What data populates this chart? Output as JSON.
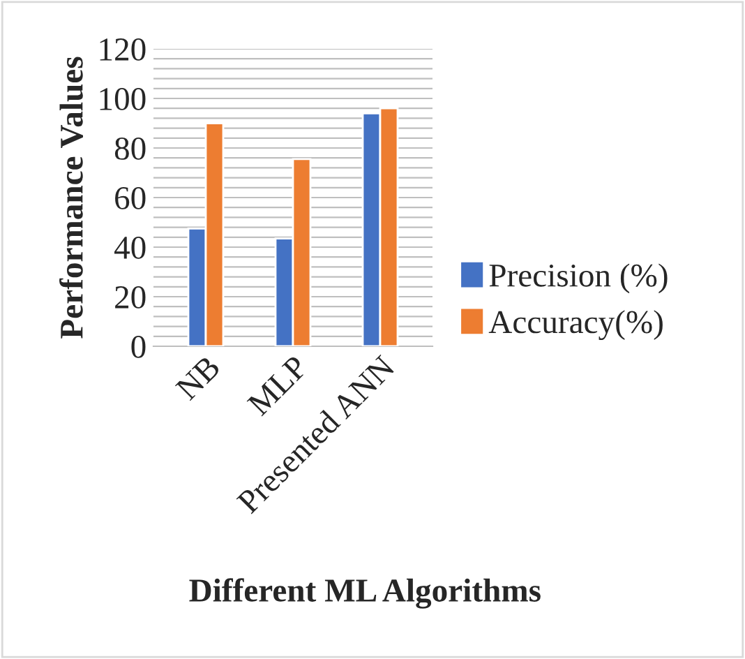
{
  "chart_data": {
    "type": "bar",
    "xlabel": "Different ML Algorithms",
    "ylabel": "Performance Values",
    "categories": [
      "NB",
      "MLP",
      "Presented ANN"
    ],
    "series": [
      {
        "name": "Precision (%)",
        "color": "#4472c4",
        "values": [
          47.5,
          43.5,
          94
        ]
      },
      {
        "name": "Accuracy(%)",
        "color": "#ed7d31",
        "values": [
          90,
          75.5,
          96
        ]
      }
    ],
    "ylim": [
      0,
      120
    ],
    "yticks": [
      0,
      {
        "value": 4,
        "label": null
      },
      {
        "value": 8,
        "label": null
      },
      {
        "value": 12,
        "label": null
      },
      {
        "value": 16,
        "label": null
      },
      20,
      {
        "value": 24,
        "label": null
      },
      {
        "value": 28,
        "label": null
      },
      {
        "value": 32,
        "label": null
      },
      {
        "value": 36,
        "label": null
      },
      40,
      {
        "value": 44,
        "label": null
      },
      {
        "value": 48,
        "label": null
      },
      {
        "value": 52,
        "label": null
      },
      {
        "value": 56,
        "label": null
      },
      60,
      {
        "value": 64,
        "label": null
      },
      {
        "value": 68,
        "label": null
      },
      {
        "value": 72,
        "label": null
      },
      {
        "value": 76,
        "label": null
      },
      80,
      {
        "value": 84,
        "label": null
      },
      {
        "value": 88,
        "label": null
      },
      {
        "value": 92,
        "label": null
      },
      {
        "value": 96,
        "label": null
      },
      100,
      {
        "value": 104,
        "label": null
      },
      {
        "value": 108,
        "label": null
      },
      {
        "value": 112,
        "label": null
      },
      {
        "value": 116,
        "label": null
      },
      120
    ],
    "grid": "y",
    "legend": "right"
  }
}
